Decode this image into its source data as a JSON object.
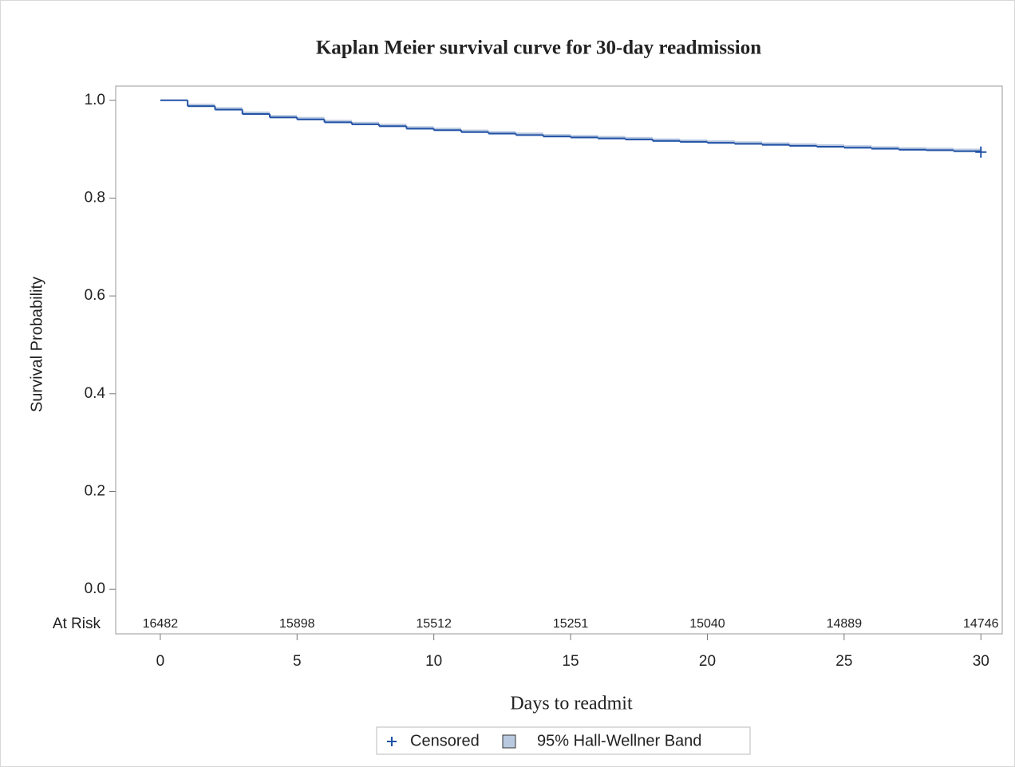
{
  "chart_data": {
    "type": "step",
    "title": "Kaplan Meier survival curve for 30-day readmission",
    "x_label": "Days to readmit",
    "y_label": "Survival Probability",
    "xlim": [
      -1.63,
      30.78
    ],
    "ylim": [
      -0.091,
      1.029
    ],
    "xticks": [
      0,
      5,
      10,
      15,
      20,
      25,
      30
    ],
    "yticks": [
      {
        "value": 0,
        "label": "0.0"
      },
      0.2,
      0.4,
      0.6,
      0.8,
      {
        "value": 1,
        "label": "1.0"
      }
    ],
    "survival": {
      "color": "#2252a6",
      "x": [
        0,
        1,
        2,
        3,
        4,
        5,
        6,
        7,
        8,
        9,
        10,
        11,
        12,
        13,
        14,
        15,
        16,
        17,
        18,
        19,
        20,
        21,
        22,
        23,
        24,
        25,
        26,
        27,
        28,
        29,
        30
      ],
      "values": [
        1.0,
        0.988,
        0.981,
        0.972,
        0.965,
        0.961,
        0.955,
        0.951,
        0.947,
        0.942,
        0.939,
        0.935,
        0.932,
        0.929,
        0.926,
        0.924,
        0.922,
        0.92,
        0.917,
        0.915,
        0.913,
        0.911,
        0.909,
        0.907,
        0.905,
        0.903,
        0.901,
        0.899,
        0.898,
        0.896,
        0.894
      ]
    },
    "band": {
      "name": "95% Hall-Wellner Band",
      "color": "#b9c9e0",
      "upper": [
        1.0,
        0.993,
        0.986,
        0.977,
        0.97,
        0.966,
        0.96,
        0.956,
        0.952,
        0.947,
        0.944,
        0.94,
        0.937,
        0.934,
        0.931,
        0.929,
        0.927,
        0.925,
        0.922,
        0.92,
        0.918,
        0.916,
        0.914,
        0.912,
        0.91,
        0.908,
        0.906,
        0.904,
        0.903,
        0.901,
        0.899
      ],
      "lower": [
        1.0,
        0.986,
        0.979,
        0.97,
        0.963,
        0.959,
        0.953,
        0.949,
        0.945,
        0.94,
        0.937,
        0.933,
        0.93,
        0.927,
        0.924,
        0.922,
        0.92,
        0.918,
        0.915,
        0.913,
        0.911,
        0.909,
        0.907,
        0.905,
        0.903,
        0.901,
        0.899,
        0.897,
        0.896,
        0.894,
        0.892
      ]
    },
    "censored": {
      "name": "Censored",
      "color": "#2252a6",
      "x": [
        30
      ],
      "values": [
        0.894
      ]
    },
    "at_risk": {
      "label": "At Risk",
      "x": [
        0,
        5,
        10,
        15,
        20,
        25,
        30
      ],
      "values": [
        16482,
        15898,
        15512,
        15251,
        15040,
        14889,
        14746
      ]
    }
  }
}
